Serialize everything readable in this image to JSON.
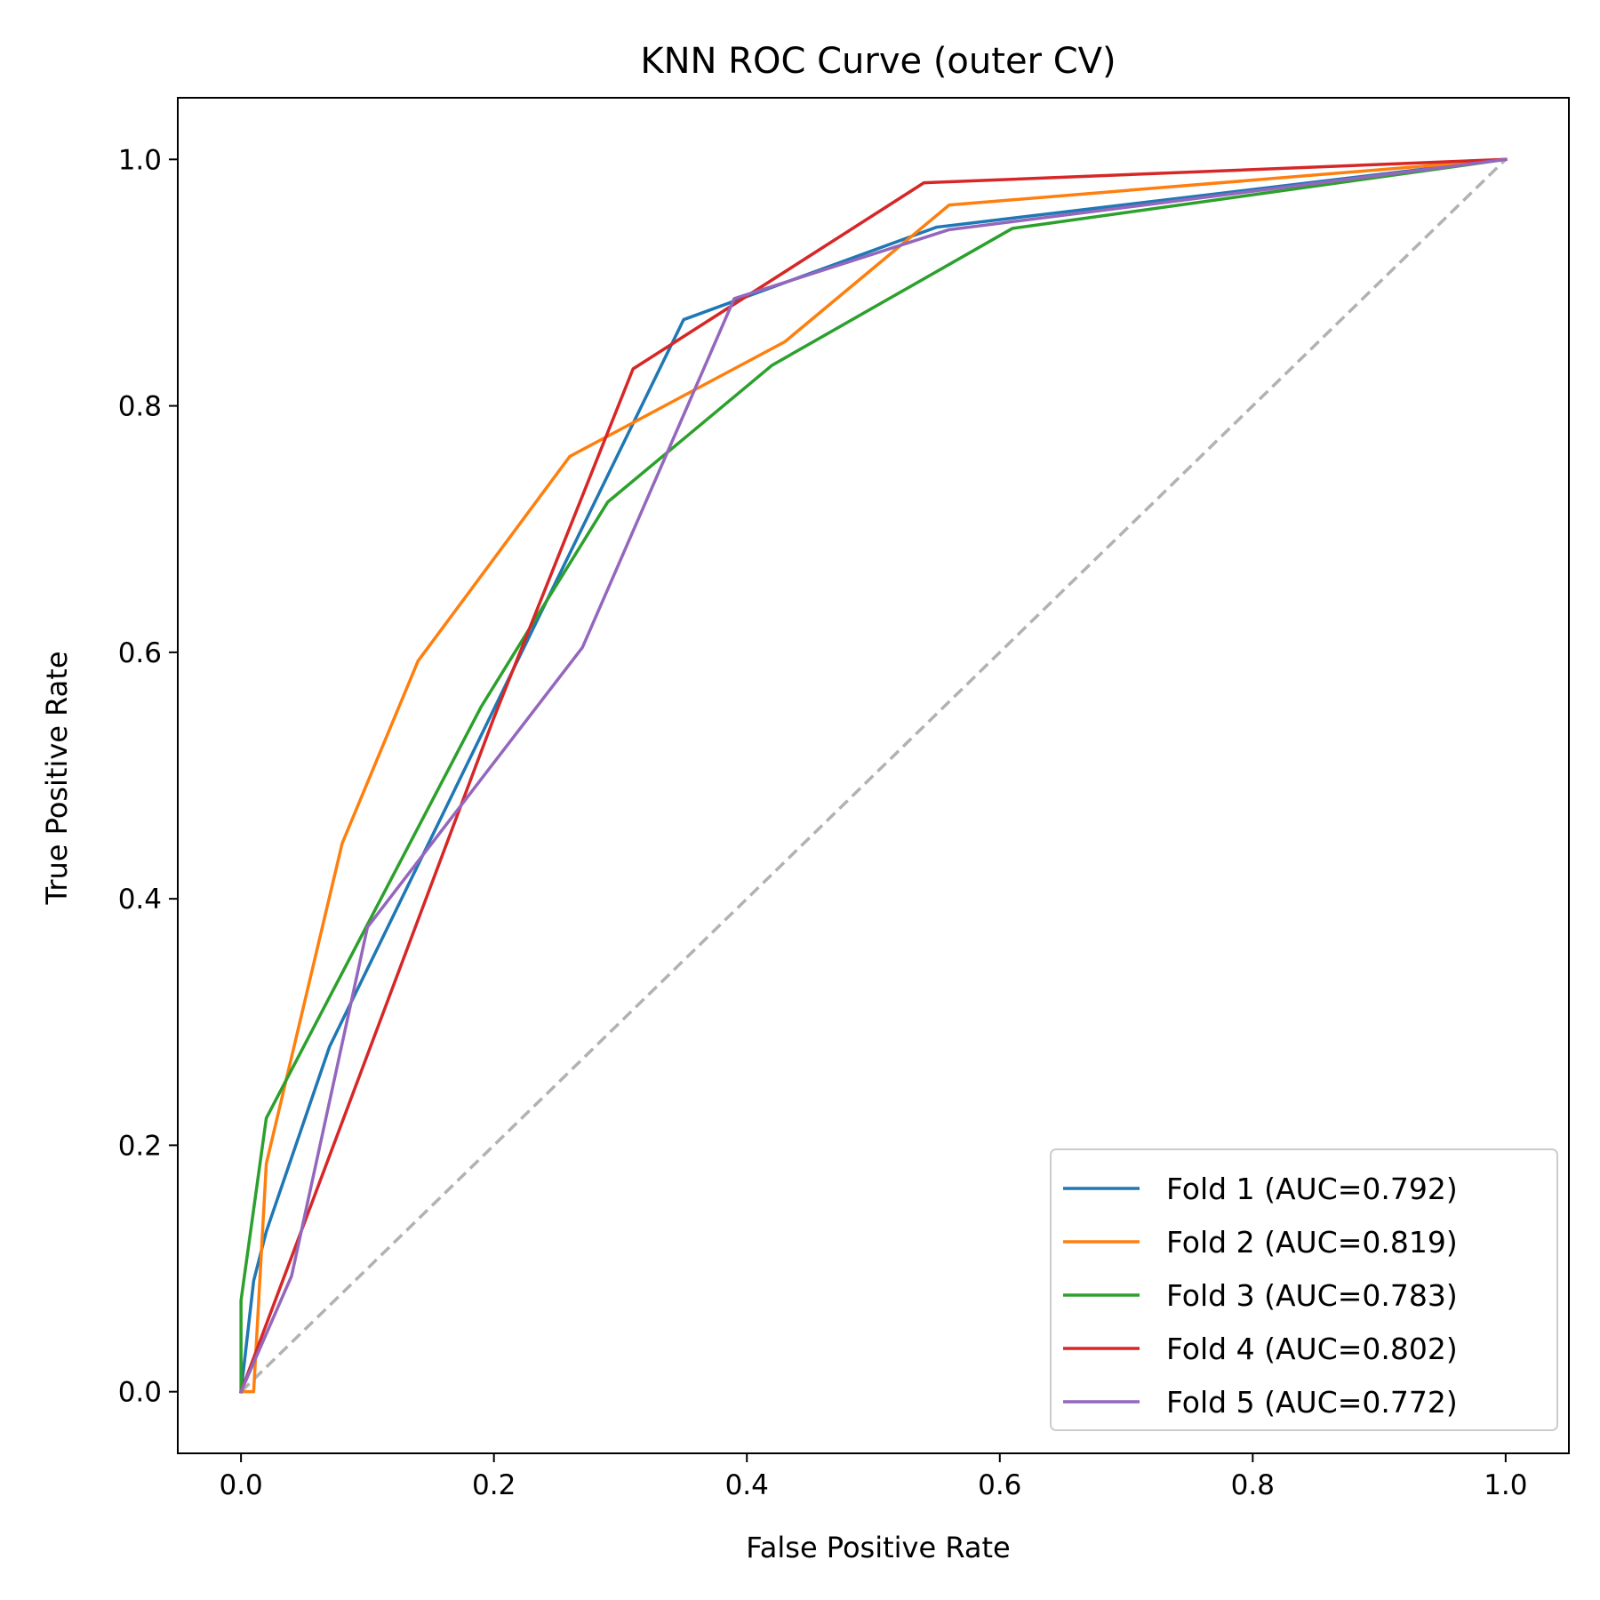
{
  "chart_data": {
    "type": "line",
    "title": "KNN ROC Curve (outer CV)",
    "xlabel": "False Positive Rate",
    "ylabel": "True Positive Rate",
    "xlim": [
      -0.05,
      1.05
    ],
    "ylim": [
      -0.05,
      1.05
    ],
    "xticks": [
      "0.0",
      "0.2",
      "0.4",
      "0.6",
      "0.8",
      "1.0"
    ],
    "yticks": [
      "0.0",
      "0.2",
      "0.4",
      "0.6",
      "0.8",
      "1.0"
    ],
    "grid": false,
    "legend_position": "lower-right",
    "reference_line": {
      "x": [
        0,
        1
      ],
      "y": [
        0,
        1
      ],
      "style": "dashed",
      "color": "#b2b2b2"
    },
    "series": [
      {
        "name": "Fold 1 (AUC=0.792)",
        "color": "#1f77b4",
        "x": [
          0.0,
          0.01,
          0.02,
          0.07,
          0.35,
          0.55,
          1.0
        ],
        "y": [
          0.0,
          0.09,
          0.13,
          0.28,
          0.87,
          0.945,
          1.0
        ]
      },
      {
        "name": "Fold 2 (AUC=0.819)",
        "color": "#ff7f0e",
        "x": [
          0.0,
          0.01,
          0.02,
          0.08,
          0.14,
          0.26,
          0.43,
          0.56,
          1.0
        ],
        "y": [
          0.0,
          0.0,
          0.185,
          0.445,
          0.593,
          0.759,
          0.852,
          0.963,
          1.0
        ]
      },
      {
        "name": "Fold 3 (AUC=0.783)",
        "color": "#2ca02c",
        "x": [
          0.0,
          0.0,
          0.02,
          0.19,
          0.29,
          0.42,
          0.61,
          1.0
        ],
        "y": [
          0.0,
          0.074,
          0.222,
          0.556,
          0.722,
          0.833,
          0.944,
          1.0
        ]
      },
      {
        "name": "Fold 4 (AUC=0.802)",
        "color": "#d62728",
        "x": [
          0.0,
          0.2,
          0.31,
          0.54,
          1.0
        ],
        "y": [
          0.0,
          0.547,
          0.83,
          0.981,
          1.0
        ]
      },
      {
        "name": "Fold 5 (AUC=0.772)",
        "color": "#9467bd",
        "x": [
          0.0,
          0.04,
          0.1,
          0.27,
          0.39,
          0.56,
          1.0
        ],
        "y": [
          0.0,
          0.094,
          0.377,
          0.604,
          0.887,
          0.943,
          1.0
        ]
      }
    ]
  }
}
